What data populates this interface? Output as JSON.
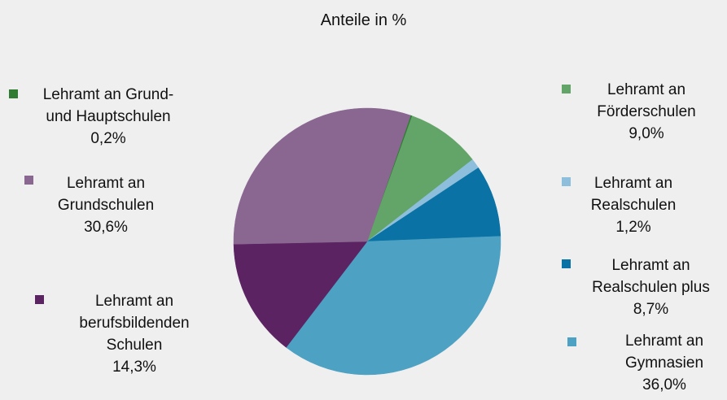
{
  "chart_data": {
    "type": "pie",
    "title": "Anteile in %",
    "slices": [
      {
        "label_lines": [
          "Lehramt an Grund-",
          "und Hauptschulen"
        ],
        "value_label": "0,2%",
        "value": 0.2,
        "color": "#2e7d32"
      },
      {
        "label_lines": [
          "Lehramt an",
          "Förderschulen"
        ],
        "value_label": "9,0%",
        "value": 9.0,
        "color": "#63a468"
      },
      {
        "label_lines": [
          "Lehramt an",
          "Realschulen"
        ],
        "value_label": "1,2%",
        "value": 1.2,
        "color": "#8dbfdc"
      },
      {
        "label_lines": [
          "Lehramt an",
          "Realschulen plus"
        ],
        "value_label": "8,7%",
        "value": 8.7,
        "color": "#0a72a4"
      },
      {
        "label_lines": [
          "Lehramt an",
          "Gymnasien"
        ],
        "value_label": "36,0%",
        "value": 36.0,
        "color": "#4da1c3"
      },
      {
        "label_lines": [
          "Lehramt an",
          "berufsbildenden",
          "Schulen"
        ],
        "value_label": "14,3%",
        "value": 14.3,
        "color": "#5b2362"
      },
      {
        "label_lines": [
          "Lehramt an",
          "Grundschulen"
        ],
        "value_label": "30,6%",
        "value": 30.6,
        "color": "#8a6791"
      }
    ]
  }
}
